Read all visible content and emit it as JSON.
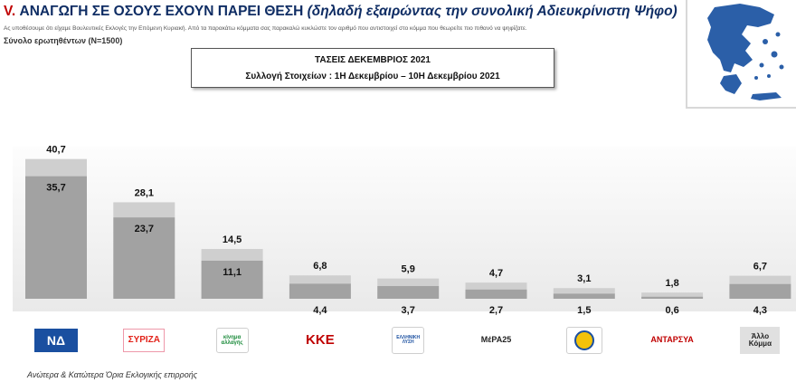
{
  "header": {
    "title_num": "V.",
    "title_main": "ΑΝΑΓΩΓΗ ΣΕ ΟΣΟΥΣ ΕΧΟΥΝ ΠΑΡΕΙ ΘΕΣΗ",
    "title_paren": "(δηλαδή εξαιρώντας την συνολική Αδιευκρίνιστη Ψήφο)",
    "subtitle": "Ας υποθέσουμε ότι είχαμε Βουλευτικές Εκλογές την Επόμενη Κυριακή. Από τα παρακάτω κόμματα σας παρακαλώ κυκλώστε τον αριθμό που αντιστοιχεί στο κόμμα που θεωρείτε πιο πιθανό να ψηφίζατε.",
    "sample": "Σύνολο ερωτηθέντων (Ν=1500)"
  },
  "info_box": {
    "line1": "ΤΑΣΕΙΣ ΔΕΚΕΜΒΡΙΟΣ 2021",
    "line2": "Συλλογή Στοιχείων : 1Η Δεκεμβρίου – 10Η Δεκεμβρίου 2021"
  },
  "footer": "Ανώτερα & Κατώτερα Όρια Εκλογικής επιρροής",
  "colors": {
    "upper_bar": "#cfcfcf",
    "lower_bar": "#a2a2a2",
    "title": "#0f2d64",
    "accent": "#c00000",
    "greece_map": "#2b5fa8"
  },
  "chart_data": {
    "type": "bar",
    "categories": [
      "ΝΔ",
      "ΣΥΡΙΖΑ",
      "ΚΙΝΑΛ",
      "ΚΚΕ",
      "ΕΛΛΗΝΙΚΗ ΛΥΣΗ",
      "ΜέΡΑ25",
      "ΕΛΛΗΝΕΣ",
      "ΑΝΤΑΡΣΥΑ",
      "Άλλο Κόμμα"
    ],
    "series": [
      {
        "name": "upper",
        "values": [
          40.7,
          28.1,
          14.5,
          6.8,
          5.9,
          4.7,
          3.1,
          1.8,
          6.7
        ]
      },
      {
        "name": "lower",
        "values": [
          35.7,
          23.7,
          11.1,
          4.4,
          3.7,
          2.7,
          1.5,
          0.6,
          4.3
        ]
      }
    ],
    "upper_labels": [
      "40,7",
      "28,1",
      "14,5",
      "6,8",
      "5,9",
      "4,7",
      "3,1",
      "1,8",
      "6,7"
    ],
    "lower_labels": [
      "35,7",
      "23,7",
      "11,1",
      "4,4",
      "3,7",
      "2,7",
      "1,5",
      "0,6",
      "4,3"
    ],
    "ylim": [
      0,
      45
    ],
    "grid": false,
    "legend": "none"
  },
  "logos": [
    {
      "icon": "nd-logo",
      "text": "ΝΔ"
    },
    {
      "icon": "syriza-logo",
      "text": "ΣΥΡΙΖΑ"
    },
    {
      "icon": "kinal-logo",
      "text": "κίνημα αλλαγής"
    },
    {
      "icon": "kke-logo",
      "text": "ΚΚΕ"
    },
    {
      "icon": "elliniki-lysi-logo",
      "text": "ΕΛΛΗΝΙΚΗ ΛΥΣΗ"
    },
    {
      "icon": "mera25-logo",
      "text": "ΜέΡΑ25"
    },
    {
      "icon": "ellines-logo",
      "text": ""
    },
    {
      "icon": "antarsya-logo",
      "text": "ΑΝΤΑΡΣΥΑ"
    },
    {
      "icon": "other-party-label",
      "text": "Άλλο Κόμμα"
    }
  ]
}
